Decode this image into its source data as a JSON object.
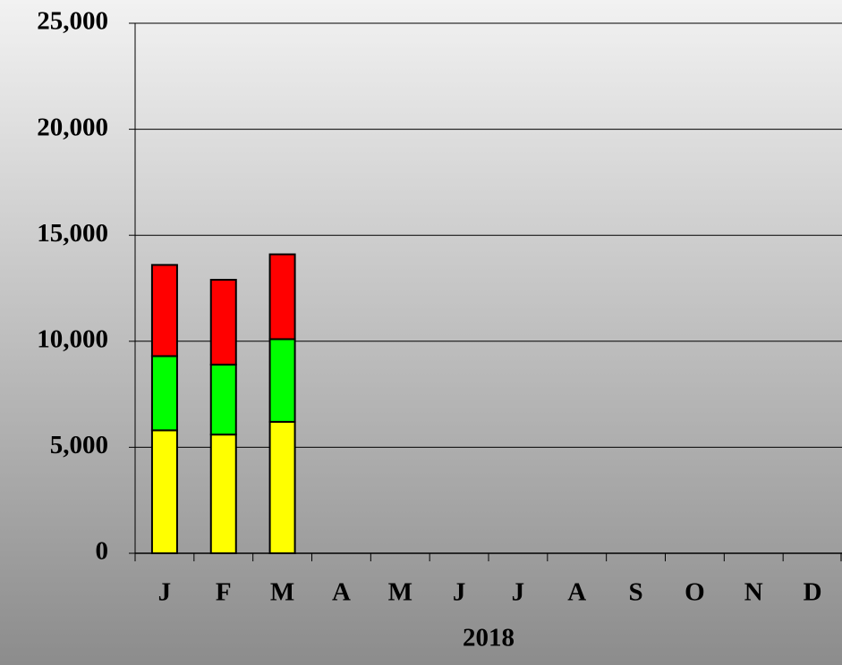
{
  "chart_data": {
    "type": "stacked_bar",
    "x_label": "2018",
    "categories": [
      "J",
      "F",
      "M",
      "A",
      "M",
      "J",
      "J",
      "A",
      "S",
      "O",
      "N",
      "D"
    ],
    "series": [
      {
        "color": "#ffff00",
        "values": [
          5800,
          5600,
          6200,
          null,
          null,
          null,
          null,
          null,
          null,
          null,
          null,
          null
        ]
      },
      {
        "color": "#00ff00",
        "values": [
          3500,
          3300,
          3900,
          null,
          null,
          null,
          null,
          null,
          null,
          null,
          null,
          null
        ]
      },
      {
        "color": "#ff0000",
        "values": [
          4300,
          4000,
          4000,
          null,
          null,
          null,
          null,
          null,
          null,
          null,
          null,
          null
        ]
      }
    ],
    "ylim": [
      0,
      25000
    ],
    "yticks": [
      0,
      {
        "value": 5000,
        "label": "5,000"
      },
      {
        "value": 10000,
        "label": "10,000"
      },
      {
        "value": 15000,
        "label": "15,000"
      },
      {
        "value": 20000,
        "label": "20,000"
      },
      {
        "value": 25000,
        "label": "25,000"
      }
    ],
    "grid": true
  }
}
